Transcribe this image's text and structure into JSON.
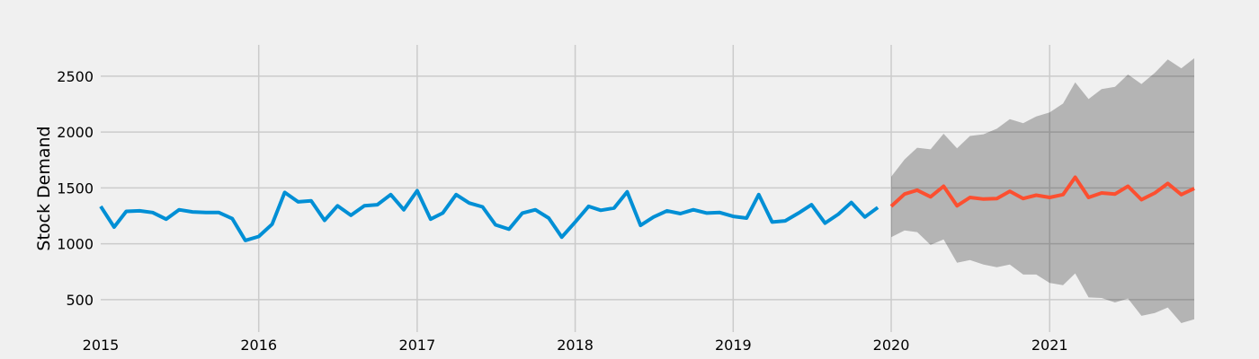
{
  "chart_data": {
    "type": "line",
    "ylabel": "Stock Demand",
    "xlabel": "",
    "title": "",
    "xlim": [
      "2015-01-01",
      "2021-12-01"
    ],
    "ylim": [
      210,
      2780
    ],
    "grid": true,
    "x_ticks": [
      {
        "label": "2015",
        "date": "2015-01-01"
      },
      {
        "label": "2016",
        "date": "2016-01-01"
      },
      {
        "label": "2017",
        "date": "2017-01-01"
      },
      {
        "label": "2018",
        "date": "2018-01-01"
      },
      {
        "label": "2019",
        "date": "2019-01-01"
      },
      {
        "label": "2020",
        "date": "2020-01-01"
      },
      {
        "label": "2021",
        "date": "2021-01-01"
      }
    ],
    "y_ticks": [
      500,
      1000,
      1500,
      2000,
      2500
    ],
    "colors": {
      "observed": "#008fd5",
      "forecast": "#fc4f30",
      "interval": "#b3b3b3",
      "background": "#f0f0f0",
      "grid": "#cbcbcb"
    },
    "observed": {
      "dates": [
        "2015-01-01",
        "2015-02-01",
        "2015-03-01",
        "2015-04-01",
        "2015-05-01",
        "2015-06-01",
        "2015-07-01",
        "2015-08-01",
        "2015-09-01",
        "2015-10-01",
        "2015-11-01",
        "2015-12-01",
        "2016-01-01",
        "2016-02-01",
        "2016-03-01",
        "2016-04-01",
        "2016-05-01",
        "2016-06-01",
        "2016-07-01",
        "2016-08-01",
        "2016-09-01",
        "2016-10-01",
        "2016-11-01",
        "2016-12-01",
        "2017-01-01",
        "2017-02-01",
        "2017-03-01",
        "2017-04-01",
        "2017-05-01",
        "2017-06-01",
        "2017-07-01",
        "2017-08-01",
        "2017-09-01",
        "2017-10-01",
        "2017-11-01",
        "2017-12-01",
        "2018-01-01",
        "2018-02-01",
        "2018-03-01",
        "2018-04-01",
        "2018-05-01",
        "2018-06-01",
        "2018-07-01",
        "2018-08-01",
        "2018-09-01",
        "2018-10-01",
        "2018-11-01",
        "2018-12-01",
        "2019-01-01",
        "2019-02-01",
        "2019-03-01",
        "2019-04-01",
        "2019-05-01",
        "2019-06-01",
        "2019-07-01",
        "2019-08-01",
        "2019-09-01",
        "2019-10-01",
        "2019-11-01",
        "2019-12-01"
      ],
      "values": [
        1335,
        1150,
        1290,
        1295,
        1280,
        1220,
        1305,
        1285,
        1280,
        1280,
        1225,
        1030,
        1065,
        1175,
        1460,
        1375,
        1385,
        1210,
        1340,
        1255,
        1340,
        1350,
        1440,
        1305,
        1475,
        1220,
        1275,
        1440,
        1365,
        1330,
        1170,
        1130,
        1275,
        1305,
        1230,
        1060,
        1195,
        1335,
        1300,
        1320,
        1465,
        1165,
        1240,
        1295,
        1270,
        1305,
        1275,
        1280,
        1245,
        1230,
        1440,
        1195,
        1205,
        1275,
        1350,
        1185,
        1265,
        1370,
        1240,
        1325
      ]
    },
    "forecast": {
      "dates": [
        "2020-01-01",
        "2020-02-01",
        "2020-03-01",
        "2020-04-01",
        "2020-05-01",
        "2020-06-01",
        "2020-07-01",
        "2020-08-01",
        "2020-09-01",
        "2020-10-01",
        "2020-11-01",
        "2020-12-01",
        "2021-01-01",
        "2021-02-01",
        "2021-03-01",
        "2021-04-01",
        "2021-05-01",
        "2021-06-01",
        "2021-07-01",
        "2021-08-01",
        "2021-09-01",
        "2021-10-01",
        "2021-11-01",
        "2021-12-01"
      ],
      "values": [
        1335,
        1445,
        1480,
        1420,
        1515,
        1340,
        1415,
        1400,
        1405,
        1470,
        1405,
        1435,
        1415,
        1440,
        1595,
        1415,
        1455,
        1445,
        1515,
        1395,
        1455,
        1540,
        1440,
        1495
      ],
      "lower": [
        1060,
        1120,
        1105,
        990,
        1040,
        830,
        855,
        815,
        790,
        815,
        725,
        725,
        650,
        630,
        735,
        520,
        515,
        475,
        510,
        355,
        380,
        430,
        290,
        325
      ],
      "upper": [
        1600,
        1755,
        1860,
        1845,
        1985,
        1855,
        1965,
        1980,
        2030,
        2115,
        2080,
        2140,
        2175,
        2255,
        2445,
        2295,
        2385,
        2405,
        2515,
        2430,
        2530,
        2650,
        2570,
        2660
      ]
    }
  }
}
